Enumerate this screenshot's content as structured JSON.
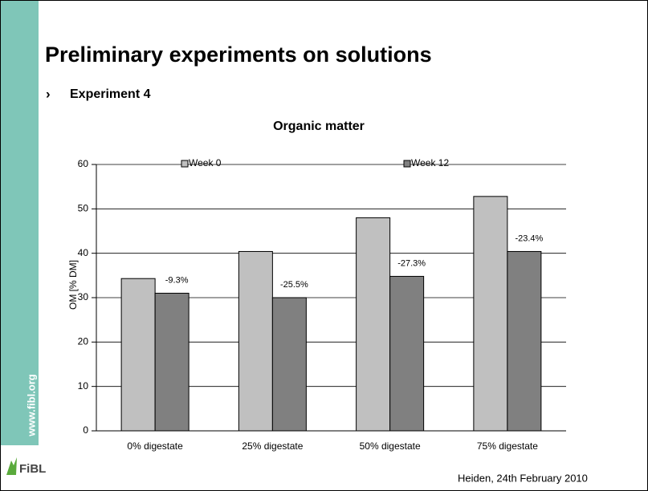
{
  "slide": {
    "title": "Preliminary experiments on solutions",
    "bullet": "Experiment 4",
    "website": "www.fibl.org",
    "logo": "FiBL",
    "footer": "Heiden, 24th February 2010"
  },
  "chart_data": {
    "type": "bar",
    "title": "Organic matter",
    "y_label": "OM [% DM]",
    "categories": [
      "0% digestate",
      "25% digestate",
      "50% digestate",
      "75% digestate"
    ],
    "series": [
      {
        "name": "Week 0",
        "color": "#c0c0c0",
        "values": [
          34.3,
          40.4,
          48,
          52.8
        ]
      },
      {
        "name": "Week 12",
        "color": "#808080",
        "values": [
          31,
          30,
          34.8,
          40.4
        ],
        "annotations": [
          "-9.3%",
          "-25.5%",
          "-27.3%",
          "-23.4%"
        ]
      }
    ],
    "ylim": [
      0,
      60
    ],
    "yticks": [
      0,
      10,
      20,
      30,
      40,
      50,
      60
    ],
    "grid": true
  }
}
